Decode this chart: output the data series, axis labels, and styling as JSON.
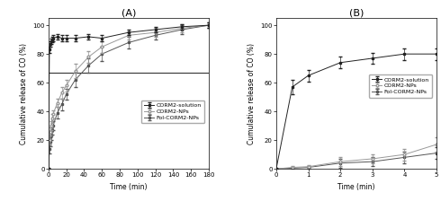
{
  "title_A": "(A)",
  "title_B": "(B)",
  "xlabel": "Time (min)",
  "ylabel": "Cumulative release of CO (%)",
  "legend_labels": [
    "CORM2-solution",
    "CORM2-NPs",
    "Fol-CORM2-NPs"
  ],
  "A_time": [
    0,
    1,
    2,
    3,
    4,
    5,
    10,
    15,
    20,
    30,
    45,
    60,
    90,
    120,
    150,
    180
  ],
  "A_corm2_sol": [
    0,
    83,
    87,
    89,
    90,
    91,
    92,
    91,
    91,
    91,
    92,
    91,
    95,
    97,
    99,
    100
  ],
  "A_corm2_sol_err": [
    0,
    2,
    2,
    2,
    2,
    2,
    2,
    2,
    2,
    2,
    2,
    2,
    2,
    2,
    2,
    2
  ],
  "A_corm2_nps": [
    0,
    20,
    26,
    30,
    35,
    38,
    46,
    53,
    58,
    68,
    78,
    85,
    93,
    95,
    98,
    100
  ],
  "A_corm2_nps_err": [
    0,
    3,
    3,
    3,
    3,
    3,
    3,
    4,
    4,
    5,
    4,
    4,
    3,
    3,
    3,
    2
  ],
  "A_fol_corm2": [
    0,
    14,
    19,
    23,
    27,
    30,
    39,
    45,
    52,
    62,
    72,
    80,
    88,
    93,
    97,
    100
  ],
  "A_fol_corm2_err": [
    0,
    3,
    3,
    3,
    3,
    3,
    4,
    4,
    4,
    5,
    5,
    5,
    4,
    3,
    3,
    2
  ],
  "A_hline": 67,
  "A_xlim": [
    0,
    180
  ],
  "A_ylim": [
    0,
    105
  ],
  "A_xticks": [
    0,
    20,
    40,
    60,
    80,
    100,
    120,
    140,
    160,
    180
  ],
  "A_yticks": [
    0,
    20,
    40,
    60,
    80,
    100
  ],
  "B_time": [
    0,
    0.5,
    1,
    2,
    3,
    4,
    5
  ],
  "B_corm2_sol": [
    0,
    57,
    65,
    74,
    77,
    80,
    80
  ],
  "B_corm2_sol_err": [
    0,
    5,
    4,
    4,
    4,
    4,
    4
  ],
  "B_corm2_nps": [
    0,
    1,
    1.5,
    5,
    7,
    10,
    17
  ],
  "B_corm2_nps_err": [
    0,
    1,
    1,
    3,
    3,
    4,
    5
  ],
  "B_fol_corm2": [
    0,
    0.5,
    1,
    4,
    5,
    8,
    11
  ],
  "B_fol_corm2_err": [
    0,
    1,
    1,
    3,
    3,
    4,
    4
  ],
  "B_xlim": [
    0,
    5
  ],
  "B_ylim": [
    0,
    105
  ],
  "B_xticks": [
    0,
    1,
    2,
    3,
    4,
    5
  ],
  "B_yticks": [
    0,
    20,
    40,
    60,
    80,
    100
  ],
  "line_color_sol": "#222222",
  "line_color_nps": "#999999",
  "line_color_fol": "#555555",
  "marker_sol": "s",
  "marker_nps": "o",
  "marker_fol": "s",
  "marker_fill_sol": "#222222",
  "marker_fill_nps": "white",
  "marker_fill_fol": "#555555",
  "fontsize_title": 8,
  "fontsize_label": 5.5,
  "fontsize_tick": 5,
  "fontsize_legend": 4.5
}
